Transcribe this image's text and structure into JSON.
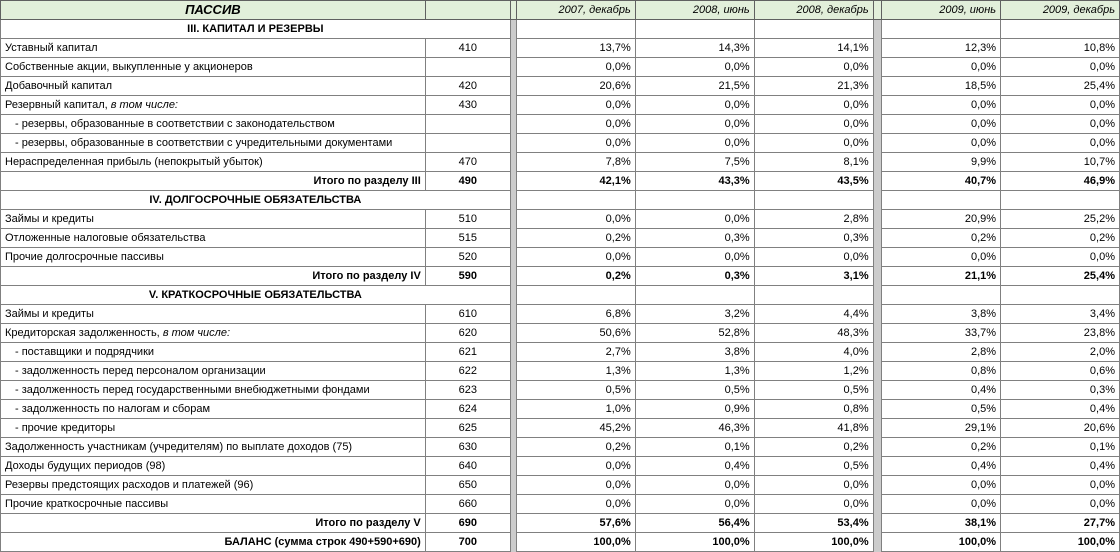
{
  "styling": {
    "header_bg": "#e2efda",
    "gap_bg": "#cccccc",
    "border_color": "#808080",
    "font_family": "Arial",
    "font_size_body": 11,
    "font_size_header": 13
  },
  "header": {
    "main": "ПАССИВ",
    "periods_a": [
      "2007, декабрь",
      "2008, июнь",
      "2008, декабрь"
    ],
    "periods_b": [
      "2009, июнь",
      "2009, декабрь"
    ]
  },
  "sections": [
    {
      "type": "section",
      "label": "III. КАПИТАЛ И РЕЗЕРВЫ"
    },
    {
      "type": "row",
      "label": "Уставный капитал",
      "code": "410",
      "a": [
        "13,7%",
        "14,3%",
        "14,1%"
      ],
      "b": [
        "12,3%",
        "10,8%"
      ]
    },
    {
      "type": "row",
      "label": "Собственные акции, выкупленные у акционеров",
      "code": "",
      "a": [
        "0,0%",
        "0,0%",
        "0,0%"
      ],
      "b": [
        "0,0%",
        "0,0%"
      ]
    },
    {
      "type": "row",
      "label": "Добавочный капитал",
      "code": "420",
      "a": [
        "20,6%",
        "21,5%",
        "21,3%"
      ],
      "b": [
        "18,5%",
        "25,4%"
      ]
    },
    {
      "type": "row",
      "label": "Резервный капитал, в том числе:",
      "code": "430",
      "italicPart": true,
      "a": [
        "0,0%",
        "0,0%",
        "0,0%"
      ],
      "b": [
        "0,0%",
        "0,0%"
      ]
    },
    {
      "type": "row",
      "indent": 1,
      "label": "- резервы, образованные в соответствии с законодательством",
      "code": "",
      "a": [
        "0,0%",
        "0,0%",
        "0,0%"
      ],
      "b": [
        "0,0%",
        "0,0%"
      ]
    },
    {
      "type": "row",
      "indent": 1,
      "label": "- резервы, образованные в соответствии с учредительными документами",
      "code": "",
      "a": [
        "0,0%",
        "0,0%",
        "0,0%"
      ],
      "b": [
        "0,0%",
        "0,0%"
      ]
    },
    {
      "type": "row",
      "label": "Нераспределенная прибыль (непокрытый убыток)",
      "code": "470",
      "a": [
        "7,8%",
        "7,5%",
        "8,1%"
      ],
      "b": [
        "9,9%",
        "10,7%"
      ]
    },
    {
      "type": "total",
      "label": "Итого по разделу III",
      "code": "490",
      "a": [
        "42,1%",
        "43,3%",
        "43,5%"
      ],
      "b": [
        "40,7%",
        "46,9%"
      ]
    },
    {
      "type": "section",
      "label": "IV. ДОЛГОСРОЧНЫЕ ОБЯЗАТЕЛЬСТВА"
    },
    {
      "type": "row",
      "label": "Займы и кредиты",
      "code": "510",
      "a": [
        "0,0%",
        "0,0%",
        "2,8%"
      ],
      "b": [
        "20,9%",
        "25,2%"
      ]
    },
    {
      "type": "row",
      "label": "Отложенные налоговые обязательства",
      "code": "515",
      "a": [
        "0,2%",
        "0,3%",
        "0,3%"
      ],
      "b": [
        "0,2%",
        "0,2%"
      ]
    },
    {
      "type": "row",
      "label": "Прочие долгосрочные пассивы",
      "code": "520",
      "a": [
        "0,0%",
        "0,0%",
        "0,0%"
      ],
      "b": [
        "0,0%",
        "0,0%"
      ]
    },
    {
      "type": "total",
      "label": "Итого по разделу IV",
      "code": "590",
      "a": [
        "0,2%",
        "0,3%",
        "3,1%"
      ],
      "b": [
        "21,1%",
        "25,4%"
      ]
    },
    {
      "type": "section",
      "label": "V. КРАТКОСРОЧНЫЕ ОБЯЗАТЕЛЬСТВА"
    },
    {
      "type": "row",
      "label": "Займы и кредиты",
      "code": "610",
      "a": [
        "6,8%",
        "3,2%",
        "4,4%"
      ],
      "b": [
        "3,8%",
        "3,4%"
      ]
    },
    {
      "type": "row",
      "label": "Кредиторская задолженность, в том числе:",
      "code": "620",
      "italicPart": true,
      "a": [
        "50,6%",
        "52,8%",
        "48,3%"
      ],
      "b": [
        "33,7%",
        "23,8%"
      ]
    },
    {
      "type": "row",
      "indent": 1,
      "label": "- поставщики и подрядчики",
      "code": "621",
      "a": [
        "2,7%",
        "3,8%",
        "4,0%"
      ],
      "b": [
        "2,8%",
        "2,0%"
      ]
    },
    {
      "type": "row",
      "indent": 1,
      "label": "- задолженность перед персоналом организации",
      "code": "622",
      "a": [
        "1,3%",
        "1,3%",
        "1,2%"
      ],
      "b": [
        "0,8%",
        "0,6%"
      ]
    },
    {
      "type": "row",
      "indent": 1,
      "label": "- задолженность перед государственными внебюджетными фондами",
      "code": "623",
      "a": [
        "0,5%",
        "0,5%",
        "0,5%"
      ],
      "b": [
        "0,4%",
        "0,3%"
      ]
    },
    {
      "type": "row",
      "indent": 1,
      "label": "- задолженность по налогам и сборам",
      "code": "624",
      "a": [
        "1,0%",
        "0,9%",
        "0,8%"
      ],
      "b": [
        "0,5%",
        "0,4%"
      ]
    },
    {
      "type": "row",
      "indent": 1,
      "label": "- прочие кредиторы",
      "code": "625",
      "a": [
        "45,2%",
        "46,3%",
        "41,8%"
      ],
      "b": [
        "29,1%",
        "20,6%"
      ]
    },
    {
      "type": "row",
      "label": "Задолженность участникам (учредителям) по выплате доходов (75)",
      "code": "630",
      "a": [
        "0,2%",
        "0,1%",
        "0,2%"
      ],
      "b": [
        "0,2%",
        "0,1%"
      ]
    },
    {
      "type": "row",
      "label": "Доходы будущих периодов (98)",
      "code": "640",
      "a": [
        "0,0%",
        "0,4%",
        "0,5%"
      ],
      "b": [
        "0,4%",
        "0,4%"
      ]
    },
    {
      "type": "row",
      "label": "Резервы предстоящих расходов и платежей (96)",
      "code": "650",
      "a": [
        "0,0%",
        "0,0%",
        "0,0%"
      ],
      "b": [
        "0,0%",
        "0,0%"
      ]
    },
    {
      "type": "row",
      "label": "Прочие краткосрочные пассивы",
      "code": "660",
      "a": [
        "0,0%",
        "0,0%",
        "0,0%"
      ],
      "b": [
        "0,0%",
        "0,0%"
      ]
    },
    {
      "type": "total",
      "label": "Итого по разделу V",
      "code": "690",
      "a": [
        "57,6%",
        "56,4%",
        "53,4%"
      ],
      "b": [
        "38,1%",
        "27,7%"
      ]
    },
    {
      "type": "total",
      "label": "БАЛАНС (сумма строк 490+590+690)",
      "code": "700",
      "a": [
        "100,0%",
        "100,0%",
        "100,0%"
      ],
      "b": [
        "100,0%",
        "100,0%"
      ]
    }
  ]
}
